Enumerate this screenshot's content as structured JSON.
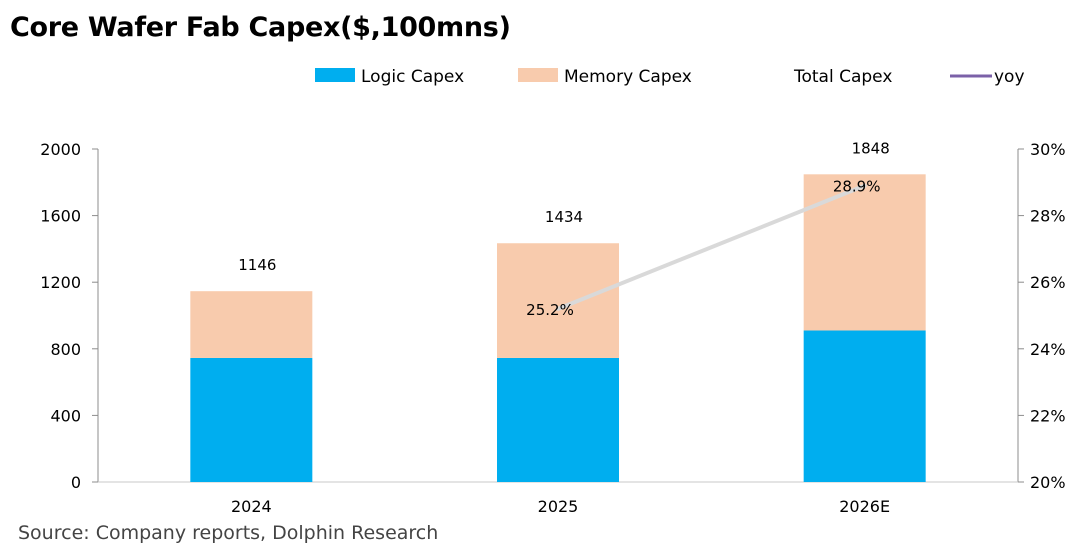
{
  "title": "Core Wafer Fab Capex($,100mns)",
  "source": "Source: Company reports, Dolphin Research",
  "chart_data": {
    "type": "bar",
    "stacked": true,
    "categories": [
      "2024",
      "2025",
      "2026E"
    ],
    "series": [
      {
        "name": "Logic Capex",
        "values": [
          745,
          745,
          910
        ],
        "color": "#00AEEF",
        "axis": "left"
      },
      {
        "name": "Memory Capex",
        "values": [
          401,
          689,
          938
        ],
        "color": "#F8CBAD",
        "axis": "left"
      }
    ],
    "totals": {
      "name": "Total Capex",
      "values": [
        1146,
        1434,
        1848
      ]
    },
    "line": {
      "name": "yoy",
      "values": [
        null,
        25.2,
        28.9
      ],
      "labels": [
        "",
        "25.2%",
        "28.9%"
      ],
      "color": "#D9D9D9",
      "legend_color": "#7B61A8",
      "axis": "right"
    },
    "ylim": [
      0,
      2000
    ],
    "yticks": [
      "0",
      "400",
      "800",
      "1200",
      "1600",
      "2000"
    ],
    "y2lim": [
      20,
      30
    ],
    "y2ticks": [
      "20%",
      "22%",
      "24%",
      "26%",
      "28%",
      "30%"
    ],
    "legend_position": "top",
    "grid": false
  }
}
